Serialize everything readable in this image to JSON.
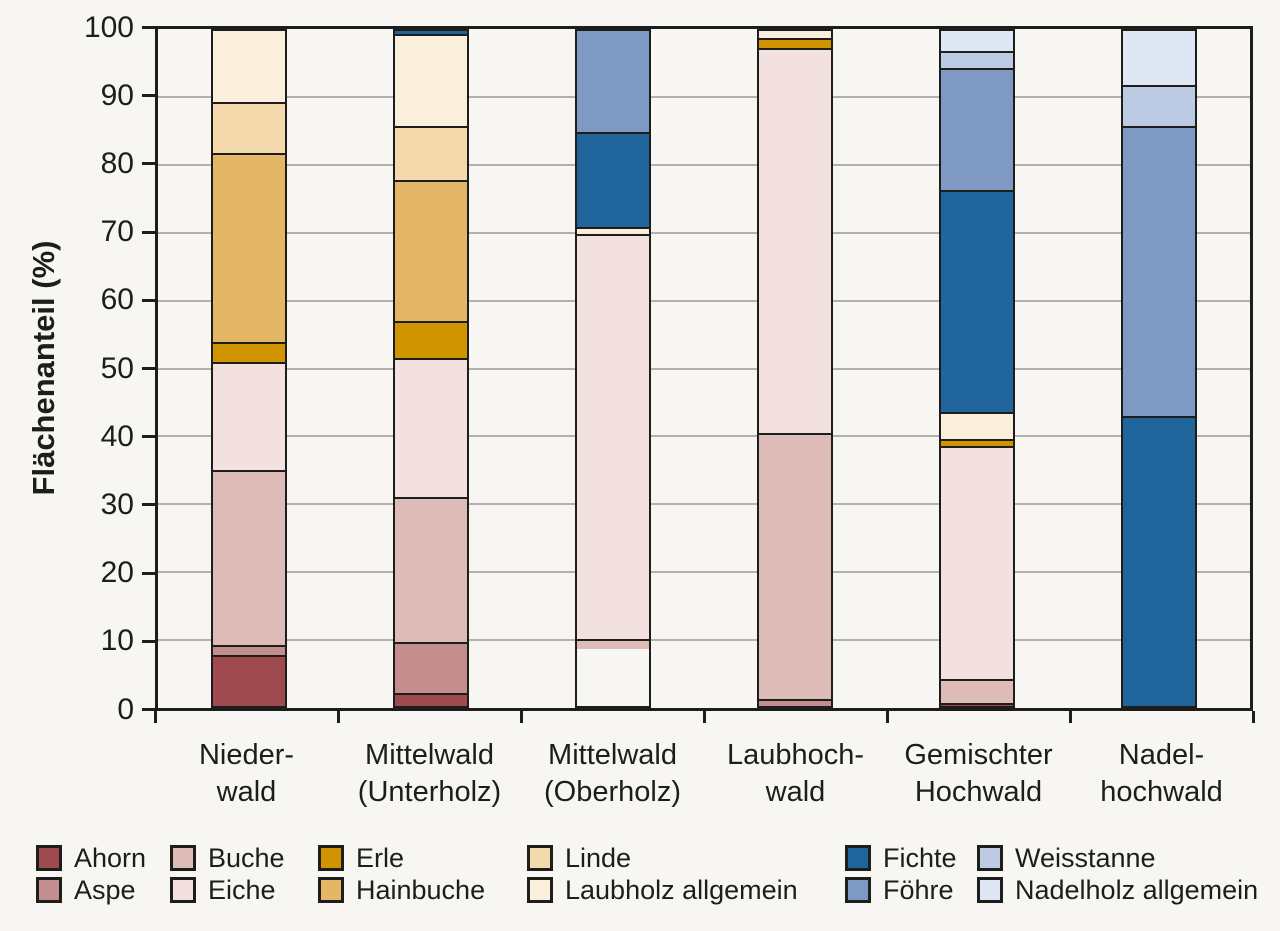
{
  "figure": {
    "background": "#f7f6f3",
    "frame_color": "#1d1d1b",
    "grid_color": "#b2b1ae"
  },
  "y_axis": {
    "title": "Flächenanteil (%)",
    "ticks": [
      0,
      10,
      20,
      30,
      40,
      50,
      60,
      70,
      80,
      90,
      100
    ],
    "min": 0,
    "max": 100
  },
  "chart_data": {
    "type": "bar",
    "stacked": true,
    "percent": true,
    "title": "",
    "xlabel": "",
    "ylabel": "Flächenanteil (%)",
    "ylim": [
      0,
      100
    ],
    "grid": "horizontal",
    "legend_position": "bottom",
    "categories": [
      "Niederwald",
      "Mittelwald (Unterholz)",
      "Mittelwald (Oberholz)",
      "Laubhochwald",
      "Gemischter Hochwald",
      "Nadelhochwald"
    ],
    "category_labels": [
      [
        "Nieder-",
        "wald"
      ],
      [
        "Mittelwald",
        "(Unterholz)"
      ],
      [
        "Mittelwald",
        "(Oberholz)"
      ],
      [
        "Laubhoch-",
        "wald"
      ],
      [
        "Gemischter",
        "Hochwald"
      ],
      [
        "Nadel-",
        "hochwald"
      ]
    ],
    "series": [
      {
        "name": "Ahorn",
        "color": "#9e4a4e",
        "values": [
          7.5,
          2,
          0,
          0,
          0.5,
          0
        ]
      },
      {
        "name": "Aspe",
        "color": "#c48e8e",
        "values": [
          1.5,
          7.5,
          0,
          1,
          0,
          0
        ]
      },
      {
        "name": "Buche",
        "color": "#ddbcb8",
        "values": [
          26,
          21.5,
          1.5,
          39.5,
          3.5,
          0
        ]
      },
      {
        "name": "Eiche",
        "color": "#f2e1de",
        "values": [
          16,
          20.5,
          60,
          57,
          34.5,
          0
        ]
      },
      {
        "name": "Erle",
        "color": "#d09400",
        "values": [
          3,
          5.5,
          0,
          1.5,
          1,
          0
        ]
      },
      {
        "name": "Hainbuche",
        "color": "#e3b766",
        "values": [
          28,
          21,
          0,
          0,
          0,
          0
        ]
      },
      {
        "name": "Linde",
        "color": "#f3d9ab",
        "values": [
          7.5,
          8,
          0,
          0,
          0,
          0
        ]
      },
      {
        "name": "Laubholz allgemein",
        "color": "#f9efdc",
        "values": [
          10.5,
          13.5,
          1,
          1,
          4,
          0
        ]
      },
      {
        "name": "Fichte",
        "color": "#20649c",
        "values": [
          0,
          0.5,
          14,
          0,
          33,
          43
        ]
      },
      {
        "name": "Föhre",
        "color": "#7e99c3",
        "values": [
          0,
          0,
          15,
          0,
          18,
          43
        ]
      },
      {
        "name": "Weisstanne",
        "color": "#bdcae3",
        "values": [
          0,
          0,
          0,
          0,
          2.5,
          6
        ]
      },
      {
        "name": "Nadelholz allgemein",
        "color": "#dfe6f4",
        "values": [
          0,
          0,
          0,
          0,
          3,
          8
        ]
      }
    ],
    "legend_columns": [
      [
        "Ahorn",
        "Aspe"
      ],
      [
        "Buche",
        "Eiche"
      ],
      [
        "Erle",
        "Hainbuche"
      ],
      [
        "Linde",
        "Laubholz allgemein"
      ],
      [
        "Fichte",
        "Föhre"
      ],
      [
        "Weisstanne",
        "Nadelholz allgemein"
      ]
    ]
  }
}
